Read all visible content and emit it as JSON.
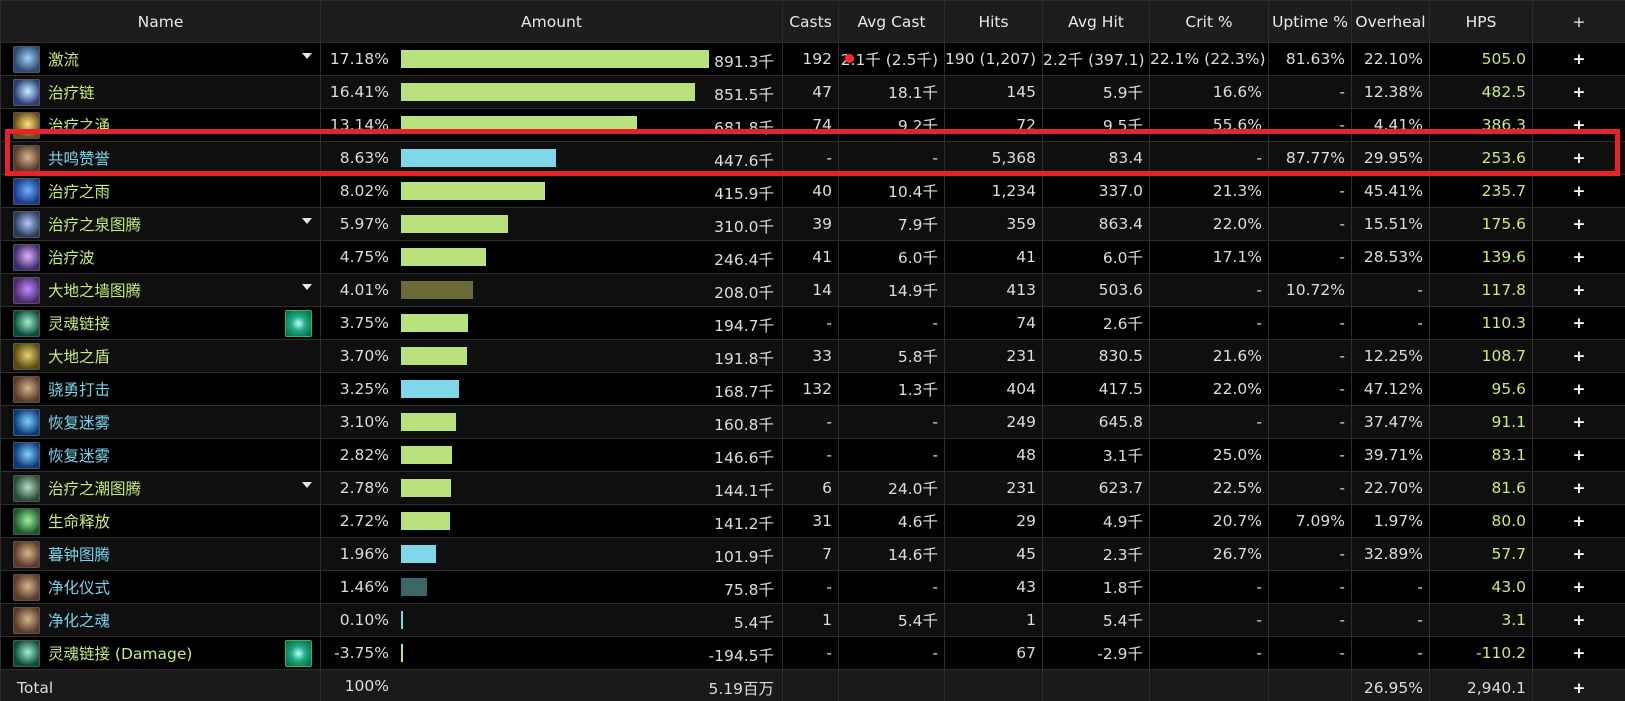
{
  "columns": [
    "Name",
    "Amount",
    "Casts",
    "Avg Cast",
    "Hits",
    "Avg Hit",
    "Crit %",
    "Uptime %",
    "Overheal",
    "HPS",
    "+"
  ],
  "colors": {
    "name_green": "#c6ec7a",
    "name_blue": "#79d5eb",
    "bar_green": "#b9e27e",
    "bar_blue": "#7fd8ea",
    "bar_olive": "#6b6b3a",
    "bar_teal": "#3b6666",
    "highlight_border": "#e5242a"
  },
  "rows": [
    {
      "name": "激流",
      "name_color": "green",
      "icon": "riptide-icon",
      "icon_colors": [
        "#2b4a6e",
        "#9fd0ff"
      ],
      "caret": true,
      "link_icon": false,
      "pct": "17.18%",
      "bar_fraction": 1.0,
      "bar_color": "green",
      "amount": "891.3千",
      "casts": "192",
      "avg_cast": "2.1千 (2.5千)",
      "hits": "190 (1,207)",
      "avg_hit": "2.2千 (397.1)",
      "crit": "22.1% (22.3%)",
      "uptime": "81.63%",
      "overheal": "22.10%",
      "hps": "505.0",
      "plus": "+"
    },
    {
      "name": "治疗链",
      "name_color": "green",
      "icon": "chain-heal-icon",
      "icon_colors": [
        "#2a3a7a",
        "#c7f0ff"
      ],
      "caret": false,
      "link_icon": false,
      "pct": "16.41%",
      "bar_fraction": 0.955,
      "bar_color": "green",
      "amount": "851.5千",
      "casts": "47",
      "avg_cast": "18.1千",
      "hits": "145",
      "avg_hit": "5.9千",
      "crit": "16.6%",
      "uptime": "-",
      "overheal": "12.38%",
      "hps": "482.5",
      "plus": "+"
    },
    {
      "name": "治疗之涌",
      "name_color": "green",
      "icon": "healing-surge-icon",
      "icon_colors": [
        "#6a4a10",
        "#ffe27a"
      ],
      "caret": false,
      "link_icon": false,
      "pct": "13.14%",
      "bar_fraction": 0.765,
      "bar_color": "green",
      "amount": "681.8千",
      "casts": "74",
      "avg_cast": "9.2千",
      "hits": "72",
      "avg_hit": "9.5千",
      "crit": "55.6%",
      "uptime": "-",
      "overheal": "4.41%",
      "hps": "386.3",
      "plus": "+"
    },
    {
      "name": "共鸣赞誉",
      "name_color": "blue",
      "icon": "paladin-icon",
      "icon_colors": [
        "#5a3a2a",
        "#d7b48a"
      ],
      "caret": false,
      "link_icon": false,
      "pct": "8.63%",
      "bar_fraction": 0.502,
      "bar_color": "blue",
      "amount": "447.6千",
      "casts": "-",
      "avg_cast": "-",
      "hits": "5,368",
      "avg_hit": "83.4",
      "crit": "-",
      "uptime": "87.77%",
      "overheal": "29.95%",
      "hps": "253.6",
      "plus": "+"
    },
    {
      "name": "治疗之雨",
      "name_color": "green",
      "icon": "healing-rain-icon",
      "icon_colors": [
        "#1a3a8a",
        "#6fb0ff"
      ],
      "caret": false,
      "link_icon": false,
      "pct": "8.02%",
      "bar_fraction": 0.466,
      "bar_color": "green",
      "amount": "415.9千",
      "casts": "40",
      "avg_cast": "10.4千",
      "hits": "1,234",
      "avg_hit": "337.0",
      "crit": "21.3%",
      "uptime": "-",
      "overheal": "45.41%",
      "hps": "235.7",
      "plus": "+"
    },
    {
      "name": "治疗之泉图腾",
      "name_color": "green",
      "icon": "healing-stream-totem-icon",
      "icon_colors": [
        "#2a3a5a",
        "#b0c8ff"
      ],
      "caret": true,
      "link_icon": false,
      "pct": "5.97%",
      "bar_fraction": 0.347,
      "bar_color": "green",
      "amount": "310.0千",
      "casts": "39",
      "avg_cast": "7.9千",
      "hits": "359",
      "avg_hit": "863.4",
      "crit": "22.0%",
      "uptime": "-",
      "overheal": "15.51%",
      "hps": "175.6",
      "plus": "+"
    },
    {
      "name": "治疗波",
      "name_color": "green",
      "icon": "healing-wave-icon",
      "icon_colors": [
        "#3a2a6a",
        "#e0b0ff"
      ],
      "caret": false,
      "link_icon": false,
      "pct": "4.75%",
      "bar_fraction": 0.276,
      "bar_color": "green",
      "amount": "246.4千",
      "casts": "41",
      "avg_cast": "6.0千",
      "hits": "41",
      "avg_hit": "6.0千",
      "crit": "17.1%",
      "uptime": "-",
      "overheal": "28.53%",
      "hps": "139.6",
      "plus": "+"
    },
    {
      "name": "大地之墙图腾",
      "name_color": "green",
      "icon": "earthen-wall-totem-icon",
      "icon_colors": [
        "#4a2a6a",
        "#c08aff"
      ],
      "caret": true,
      "link_icon": false,
      "pct": "4.01%",
      "bar_fraction": 0.233,
      "bar_color": "olive",
      "amount": "208.0千",
      "casts": "14",
      "avg_cast": "14.9千",
      "hits": "413",
      "avg_hit": "503.6",
      "crit": "-",
      "uptime": "10.72%",
      "overheal": "-",
      "hps": "117.8",
      "plus": "+"
    },
    {
      "name": "灵魂链接",
      "name_color": "green",
      "icon": "spirit-link-icon",
      "icon_colors": [
        "#0a4a3a",
        "#9ff0d0"
      ],
      "caret": false,
      "link_icon": true,
      "pct": "3.75%",
      "bar_fraction": 0.218,
      "bar_color": "green",
      "amount": "194.7千",
      "casts": "-",
      "avg_cast": "-",
      "hits": "74",
      "avg_hit": "2.6千",
      "crit": "-",
      "uptime": "-",
      "overheal": "-",
      "hps": "110.3",
      "plus": "+"
    },
    {
      "name": "大地之盾",
      "name_color": "green",
      "icon": "earth-shield-icon",
      "icon_colors": [
        "#5a4a10",
        "#e8d070"
      ],
      "caret": false,
      "link_icon": false,
      "pct": "3.70%",
      "bar_fraction": 0.215,
      "bar_color": "green",
      "amount": "191.8千",
      "casts": "33",
      "avg_cast": "5.8千",
      "hits": "231",
      "avg_hit": "830.5",
      "crit": "21.6%",
      "uptime": "-",
      "overheal": "12.25%",
      "hps": "108.7",
      "plus": "+"
    },
    {
      "name": "骁勇打击",
      "name_color": "blue",
      "icon": "paladin-icon",
      "icon_colors": [
        "#5a3a2a",
        "#d7b48a"
      ],
      "caret": false,
      "link_icon": false,
      "pct": "3.25%",
      "bar_fraction": 0.189,
      "bar_color": "blue",
      "amount": "168.7千",
      "casts": "132",
      "avg_cast": "1.3千",
      "hits": "404",
      "avg_hit": "417.5",
      "crit": "22.0%",
      "uptime": "-",
      "overheal": "47.12%",
      "hps": "95.6",
      "plus": "+"
    },
    {
      "name": "恢复迷雾",
      "name_color": "blue",
      "icon": "renewing-mist-icon",
      "icon_colors": [
        "#0a3a7a",
        "#7fd0ff"
      ],
      "caret": false,
      "link_icon": false,
      "pct": "3.10%",
      "bar_fraction": 0.18,
      "bar_color": "green",
      "amount": "160.8千",
      "casts": "-",
      "avg_cast": "-",
      "hits": "249",
      "avg_hit": "645.8",
      "crit": "-",
      "uptime": "-",
      "overheal": "37.47%",
      "hps": "91.1",
      "plus": "+"
    },
    {
      "name": "恢复迷雾",
      "name_color": "blue",
      "icon": "renewing-mist-icon",
      "icon_colors": [
        "#0a3a7a",
        "#7fd0ff"
      ],
      "caret": false,
      "link_icon": false,
      "pct": "2.82%",
      "bar_fraction": 0.164,
      "bar_color": "green",
      "amount": "146.6千",
      "casts": "-",
      "avg_cast": "-",
      "hits": "48",
      "avg_hit": "3.1千",
      "crit": "25.0%",
      "uptime": "-",
      "overheal": "39.71%",
      "hps": "83.1",
      "plus": "+"
    },
    {
      "name": "治疗之潮图腾",
      "name_color": "green",
      "icon": "healing-tide-totem-icon",
      "icon_colors": [
        "#2a4a3a",
        "#b0e0c0"
      ],
      "caret": true,
      "link_icon": false,
      "pct": "2.78%",
      "bar_fraction": 0.161,
      "bar_color": "green",
      "amount": "144.1千",
      "casts": "6",
      "avg_cast": "24.0千",
      "hits": "231",
      "avg_hit": "623.7",
      "crit": "22.5%",
      "uptime": "-",
      "overheal": "22.70%",
      "hps": "81.6",
      "plus": "+"
    },
    {
      "name": "生命释放",
      "name_color": "green",
      "icon": "unleash-life-icon",
      "icon_colors": [
        "#1a5a2a",
        "#a0f0a0"
      ],
      "caret": false,
      "link_icon": false,
      "pct": "2.72%",
      "bar_fraction": 0.158,
      "bar_color": "green",
      "amount": "141.2千",
      "casts": "31",
      "avg_cast": "4.6千",
      "hits": "29",
      "avg_hit": "4.9千",
      "crit": "20.7%",
      "uptime": "7.09%",
      "overheal": "1.97%",
      "hps": "80.0",
      "plus": "+"
    },
    {
      "name": "暮钟图腾",
      "name_color": "blue",
      "icon": "paladin-icon",
      "icon_colors": [
        "#5a3a2a",
        "#d7b48a"
      ],
      "caret": false,
      "link_icon": false,
      "pct": "1.96%",
      "bar_fraction": 0.114,
      "bar_color": "blue",
      "amount": "101.9千",
      "casts": "7",
      "avg_cast": "14.6千",
      "hits": "45",
      "avg_hit": "2.3千",
      "crit": "26.7%",
      "uptime": "-",
      "overheal": "32.89%",
      "hps": "57.7",
      "plus": "+"
    },
    {
      "name": "净化仪式",
      "name_color": "blue",
      "icon": "paladin-icon",
      "icon_colors": [
        "#5a3a2a",
        "#d7b48a"
      ],
      "caret": false,
      "link_icon": false,
      "pct": "1.46%",
      "bar_fraction": 0.085,
      "bar_color": "teal",
      "amount": "75.8千",
      "casts": "-",
      "avg_cast": "-",
      "hits": "43",
      "avg_hit": "1.8千",
      "crit": "-",
      "uptime": "-",
      "overheal": "-",
      "hps": "43.0",
      "plus": "+"
    },
    {
      "name": "净化之魂",
      "name_color": "blue",
      "icon": "paladin-icon",
      "icon_colors": [
        "#5a3a2a",
        "#d7b48a"
      ],
      "caret": false,
      "link_icon": false,
      "pct": "0.10%",
      "bar_fraction": 0.006,
      "bar_color": "blue",
      "amount": "5.4千",
      "casts": "1",
      "avg_cast": "5.4千",
      "hits": "1",
      "avg_hit": "5.4千",
      "crit": "-",
      "uptime": "-",
      "overheal": "-",
      "hps": "3.1",
      "plus": "+"
    },
    {
      "name": "灵魂链接 (Damage)",
      "name_color": "green",
      "icon": "spirit-link-icon",
      "icon_colors": [
        "#0a4a3a",
        "#9ff0d0"
      ],
      "caret": false,
      "link_icon": true,
      "pct": "-3.75%",
      "bar_fraction": 0.004,
      "bar_color": "green",
      "amount": "-194.5千",
      "casts": "-",
      "avg_cast": "-",
      "hits": "67",
      "avg_hit": "-2.9千",
      "crit": "-",
      "uptime": "-",
      "overheal": "-",
      "hps": "-110.2",
      "plus": "+"
    }
  ],
  "total": {
    "label": "Total",
    "pct": "100%",
    "amount": "5.19百万",
    "overheal": "26.95%",
    "hps": "2,940.1",
    "plus": "+"
  },
  "highlighted_row_index": 3
}
